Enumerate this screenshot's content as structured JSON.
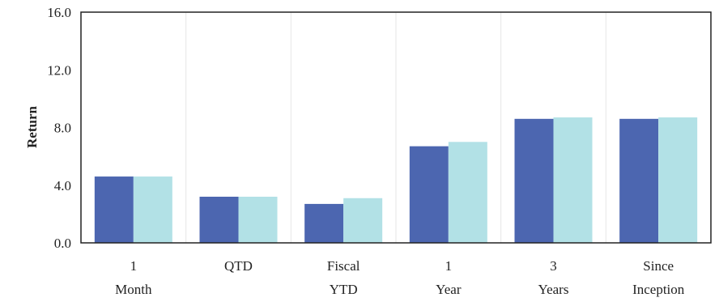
{
  "chart_data": {
    "type": "bar",
    "title": "",
    "xlabel": "",
    "ylabel": "Return",
    "ylim": [
      0,
      16
    ],
    "yticks": [
      "0.0",
      "4.0",
      "8.0",
      "12.0",
      "16.0"
    ],
    "grid": "vertical",
    "legend": "none",
    "categories": [
      [
        "1",
        "Month"
      ],
      [
        "QTD"
      ],
      [
        "Fiscal",
        "YTD"
      ],
      [
        "1",
        "Year"
      ],
      [
        "3",
        "Years"
      ],
      [
        "Since",
        "Inception"
      ]
    ],
    "series": [
      {
        "color": "#4c66b0",
        "values": [
          4.6,
          3.2,
          2.7,
          6.7,
          8.6,
          8.6
        ]
      },
      {
        "color": "#b2e1e6",
        "values": [
          4.6,
          3.2,
          3.1,
          7.0,
          8.7,
          8.7
        ]
      }
    ]
  }
}
